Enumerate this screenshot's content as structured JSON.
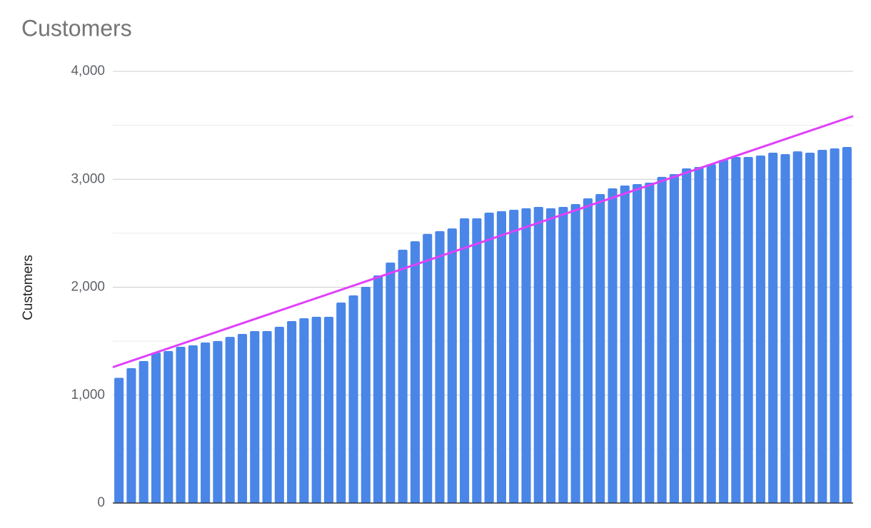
{
  "chart_data": {
    "type": "bar",
    "title": "Customers",
    "y_label": "Customers",
    "values": [
      1160,
      1250,
      1316,
      1395,
      1408,
      1448,
      1461,
      1488,
      1501,
      1540,
      1567,
      1593,
      1593,
      1633,
      1686,
      1712,
      1726,
      1726,
      1858,
      1924,
      2003,
      2109,
      2228,
      2347,
      2426,
      2493,
      2519,
      2545,
      2638,
      2638,
      2691,
      2704,
      2717,
      2731,
      2744,
      2731,
      2744,
      2770,
      2823,
      2863,
      2916,
      2942,
      2955,
      2969,
      3022,
      3048,
      3101,
      3114,
      3140,
      3180,
      3207,
      3207,
      3220,
      3246,
      3233,
      3259,
      3246,
      3273,
      3286,
      3299
    ],
    "color": "#4a86e8",
    "trendline": {
      "type": "linear",
      "color": "#e040fb"
    },
    "ylim": [
      0,
      4000
    ],
    "yticks": [
      0,
      {
        "value": 1000,
        "label": "1,000"
      },
      {
        "value": 2000,
        "label": "2,000"
      },
      {
        "value": 3000,
        "label": "3,000"
      },
      {
        "value": 4000,
        "label": "4,000"
      }
    ],
    "minor_yticks": [
      500,
      1500,
      2500,
      3500
    ],
    "grid": true
  }
}
